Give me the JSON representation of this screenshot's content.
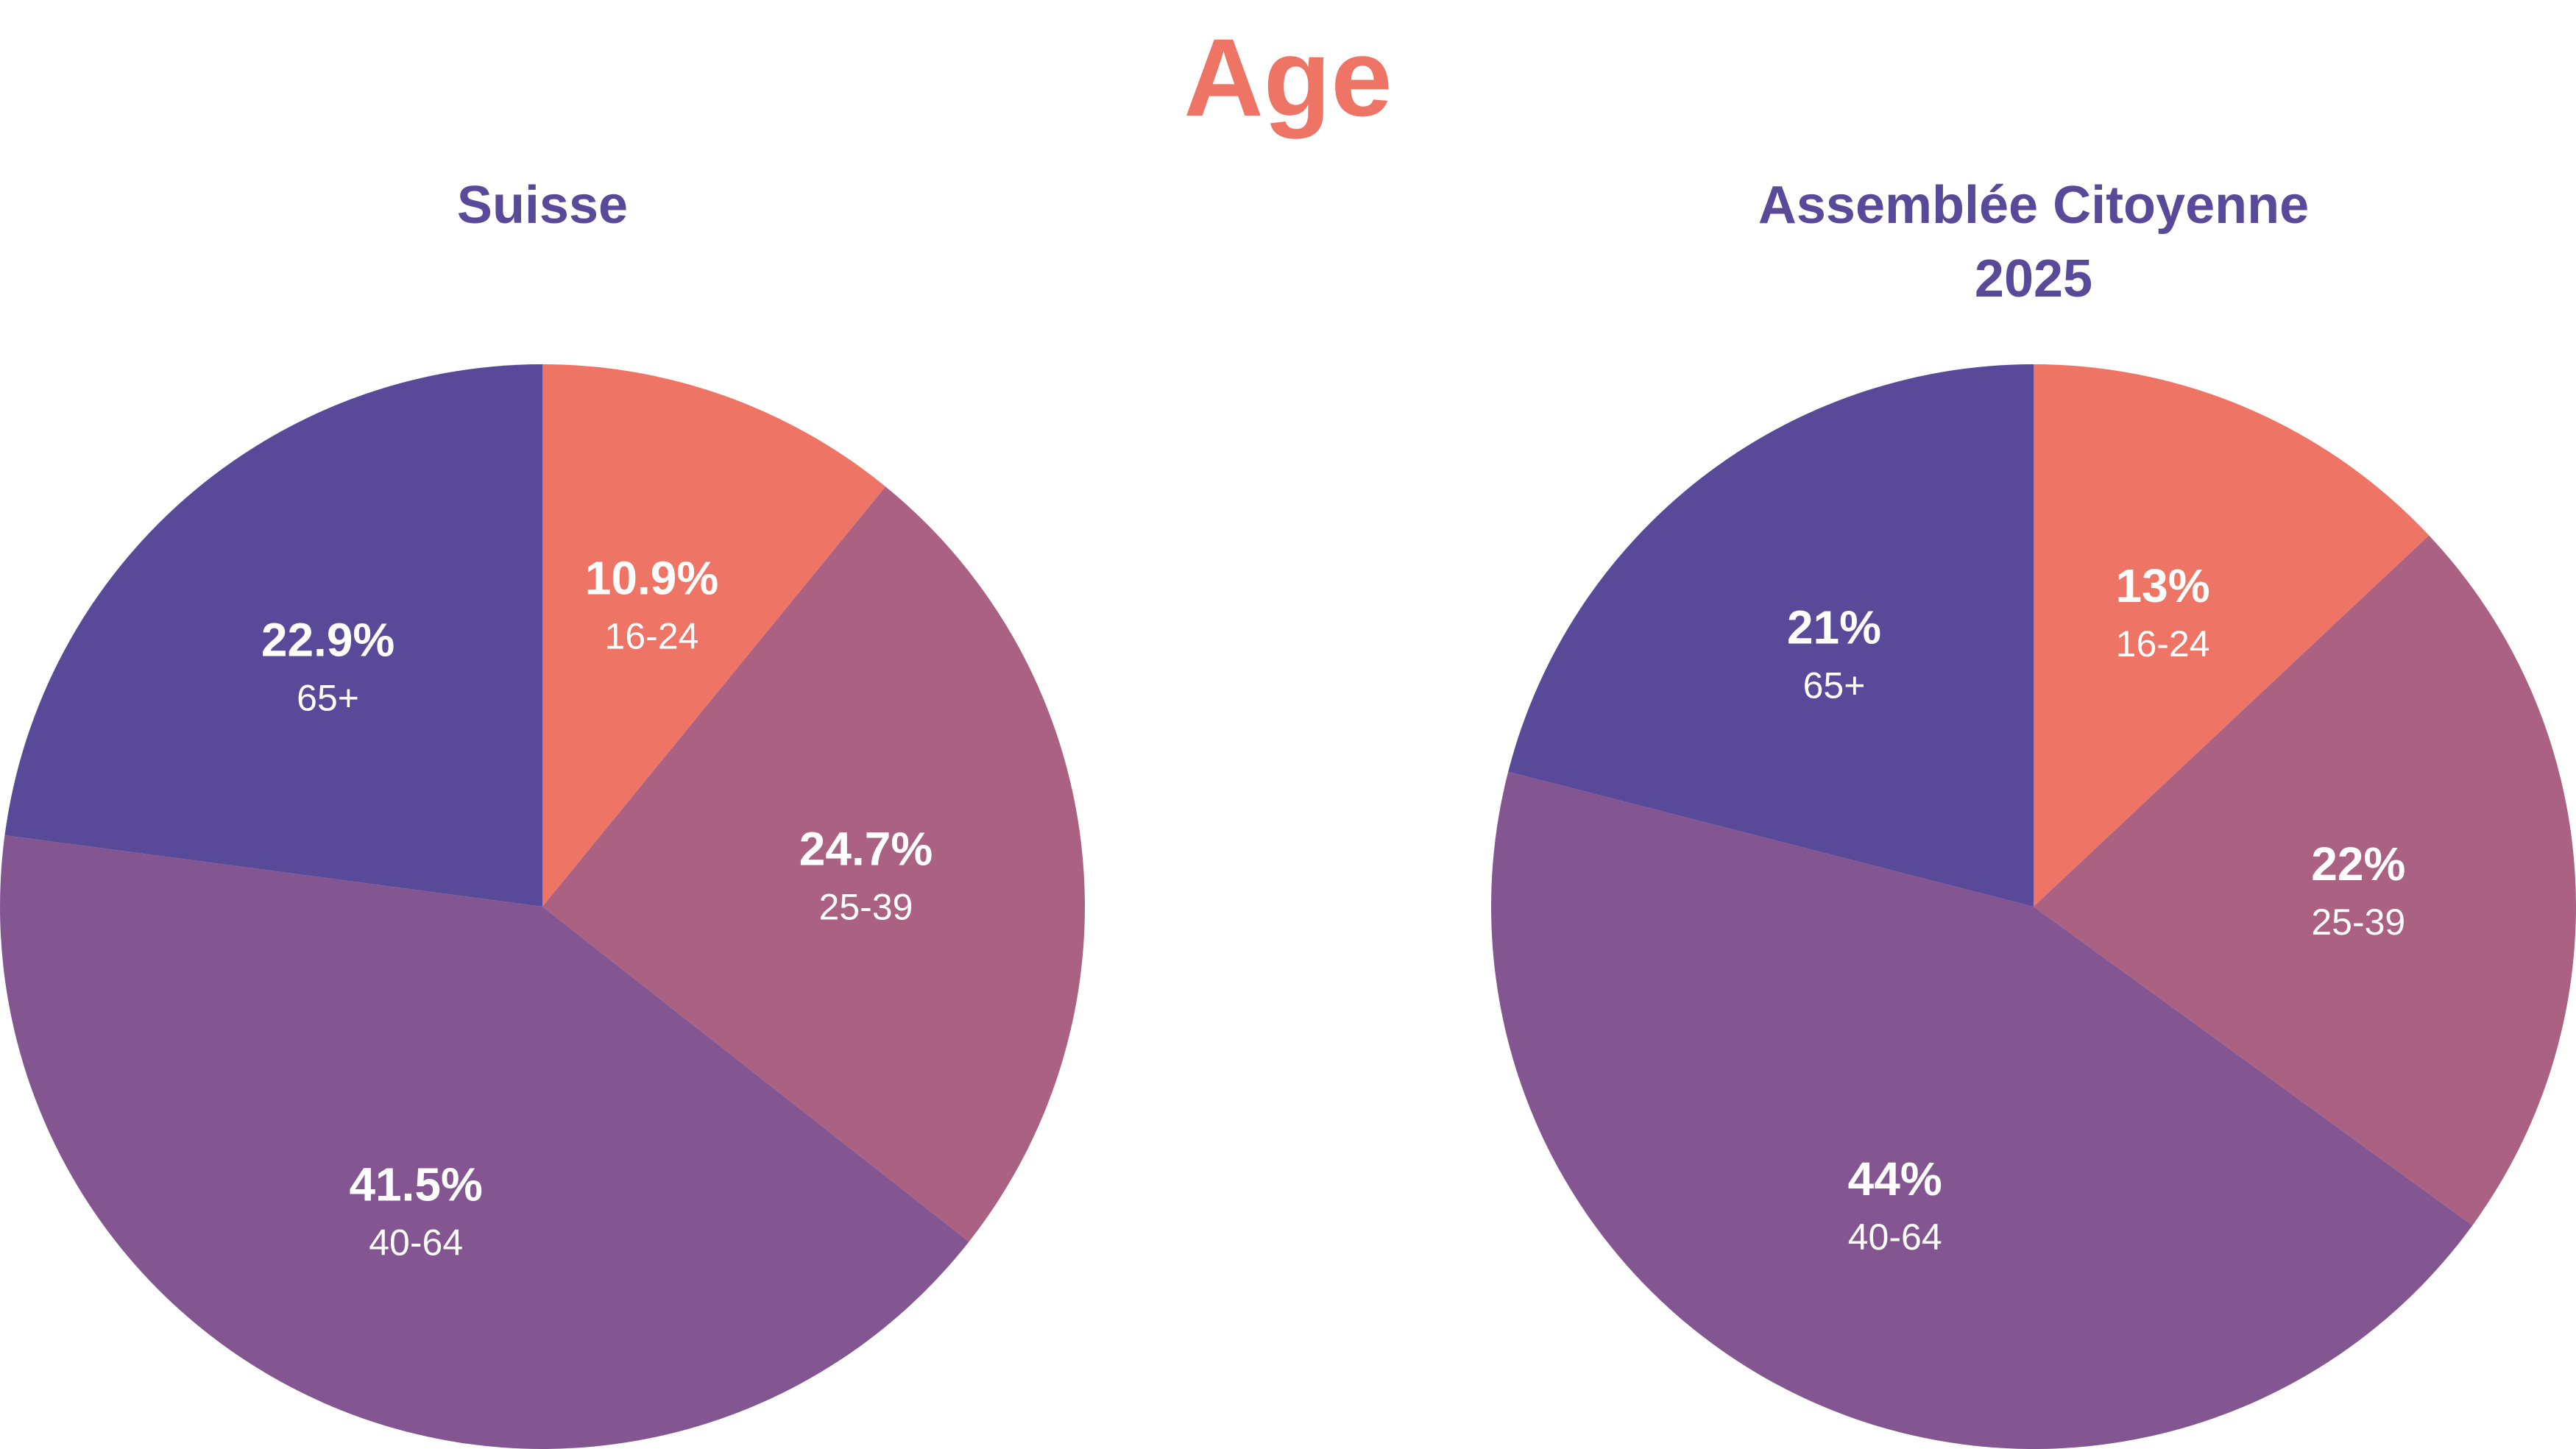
{
  "title": "Age",
  "colors": {
    "title": "#EE7566",
    "subtitle": "#584A99",
    "16-24": "#EE7566",
    "25-39": "#AB6182",
    "40-64": "#845691",
    "65+": "#584A99"
  },
  "chart_data": [
    {
      "type": "pie",
      "title": "Suisse",
      "categories": [
        "16-24",
        "25-39",
        "40-64",
        "65+"
      ],
      "values": [
        10.9,
        24.7,
        41.5,
        22.9
      ],
      "value_labels": [
        "10.9%",
        "24.7%",
        "41.5%",
        "22.9%"
      ],
      "unit": "%",
      "legend": "none"
    },
    {
      "type": "pie",
      "title": "Assemblée Citoyenne 2025",
      "title_lines": [
        "Assemblée Citoyenne",
        "2025"
      ],
      "categories": [
        "16-24",
        "25-39",
        "40-64",
        "65+"
      ],
      "values": [
        13,
        22,
        44,
        21
      ],
      "value_labels": [
        "13%",
        "22%",
        "44%",
        "21%"
      ],
      "unit": "%",
      "legend": "none"
    }
  ]
}
